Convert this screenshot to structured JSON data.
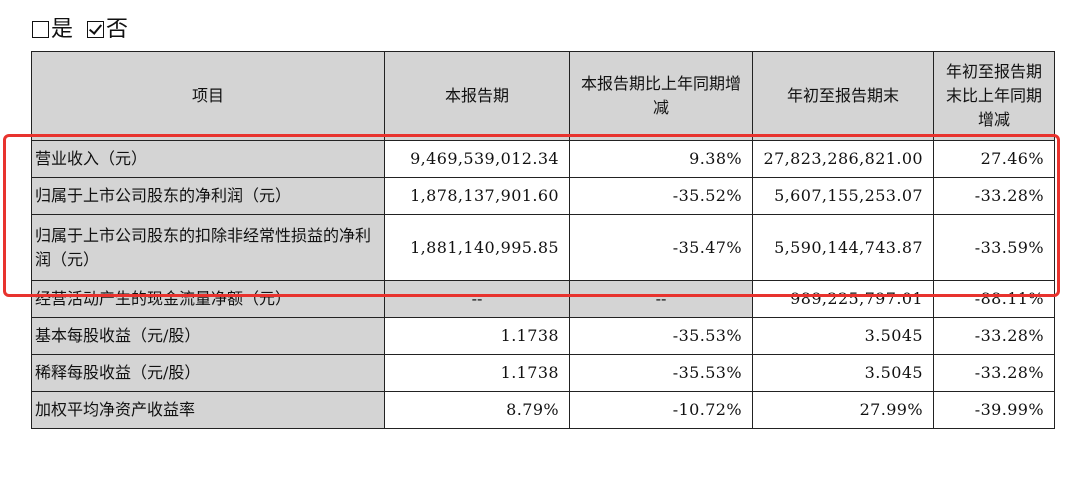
{
  "checkbox_line": {
    "option_yes": {
      "label": "是",
      "checked": false
    },
    "option_no": {
      "label": "否",
      "checked": true
    }
  },
  "table": {
    "headers": [
      "项目",
      "本报告期",
      "本报告期比上年同期增减",
      "年初至报告期末",
      "年初至报告期末比上年同期增减"
    ],
    "rows": [
      {
        "item": "营业收入（元）",
        "current": "9,469,539,012.34",
        "current_change": "9.38%",
        "ytd": "27,823,286,821.00",
        "ytd_change": "27.46%"
      },
      {
        "item": "归属于上市公司股东的净利润（元）",
        "current": "1,878,137,901.60",
        "current_change": "-35.52%",
        "ytd": "5,607,155,253.07",
        "ytd_change": "-33.28%"
      },
      {
        "item": "归属于上市公司股东的扣除非经常性损益的净利润（元）",
        "current": "1,881,140,995.85",
        "current_change": "-35.47%",
        "ytd": "5,590,144,743.87",
        "ytd_change": "-33.59%"
      },
      {
        "item": "经营活动产生的现金流量净额（元）",
        "current": "--",
        "current_change": "--",
        "ytd": "989,225,797.01",
        "ytd_change": "-88.11%"
      },
      {
        "item": "基本每股收益（元/股）",
        "current": "1.1738",
        "current_change": "-35.53%",
        "ytd": "3.5045",
        "ytd_change": "-33.28%"
      },
      {
        "item": "稀释每股收益（元/股）",
        "current": "1.1738",
        "current_change": "-35.53%",
        "ytd": "3.5045",
        "ytd_change": "-33.28%"
      },
      {
        "item": "加权平均净资产收益率",
        "current": "8.79%",
        "current_change": "-10.72%",
        "ytd": "27.99%",
        "ytd_change": "-39.99%"
      }
    ]
  },
  "highlight": {
    "color": "#e8332e",
    "rows_covered": [
      0,
      1,
      2
    ]
  },
  "colors": {
    "header_bg": "#d4d4d4",
    "border": "#222222"
  }
}
